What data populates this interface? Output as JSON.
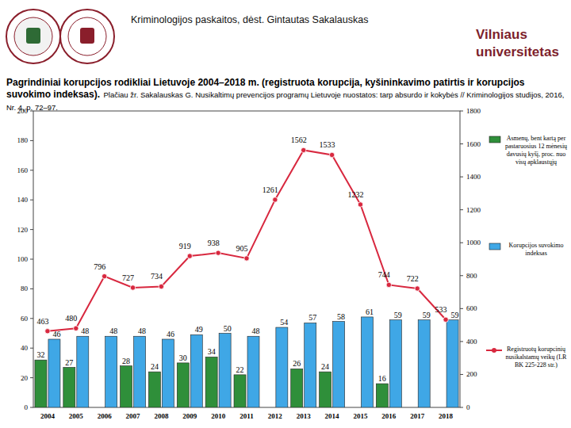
{
  "header": "Kriminologijos paskaitos, dėst. Gintautas Sakalauskas",
  "logo": [
    "Vilniaus",
    "universitetas"
  ],
  "chart_data": {
    "type": "bar",
    "title": "Pagrindiniai korupcijos rodikliai Lietuvoje 2004–2018 m. (registruota korupcija, kyšininkavimo patirtis ir korupcijos suvokimo indeksas).",
    "subtitle": "Plačiau žr. Sakalauskas G. Nusikaltimų prevencijos programų Lietuvoje nuostatos: tarp absurdo ir kokybės // Kriminologijos studijos, 2016, Nr. 4, p. 72–97.",
    "categories": [
      "2004",
      "2005",
      "2006",
      "2007",
      "2008",
      "2009",
      "2010",
      "2011",
      "2012",
      "2013",
      "2014",
      "2015",
      "2016",
      "2017",
      "2018"
    ],
    "series": [
      {
        "name": "Asmenų, bent kartą per pastaruosius 12 mėnesių davusių kyšį, proc. nuo visų apklaustųjų",
        "type": "bar",
        "color": "#2f8f3a",
        "values": [
          32,
          27,
          null,
          28,
          24,
          30,
          34,
          22,
          null,
          26,
          24,
          null,
          16,
          null,
          null
        ]
      },
      {
        "name": "Korupcijos suvokimo indeksas",
        "type": "bar",
        "color": "#3fa7e6",
        "values": [
          46,
          48,
          48,
          48,
          46,
          49,
          50,
          48,
          54,
          57,
          58,
          61,
          59,
          59,
          59
        ]
      },
      {
        "name": "Registruotų korupcinių nusikalstamų veikų (LR BK 225-228 str.)",
        "type": "line",
        "axis": "y2",
        "color": "#d8283f",
        "marker": "circle",
        "values": [
          463,
          480,
          796,
          727,
          734,
          919,
          938,
          905,
          1261,
          1562,
          1533,
          1232,
          744,
          722,
          533
        ]
      }
    ],
    "ylim": [
      0,
      200
    ],
    "yticks": [
      0,
      20,
      40,
      60,
      80,
      100,
      120,
      140,
      160,
      180,
      200
    ],
    "y2lim": [
      0,
      1800
    ],
    "y2ticks": [
      0,
      200,
      400,
      600,
      800,
      1000,
      1200,
      1400,
      1600,
      1800
    ],
    "data_labels": true,
    "legend": "right"
  }
}
